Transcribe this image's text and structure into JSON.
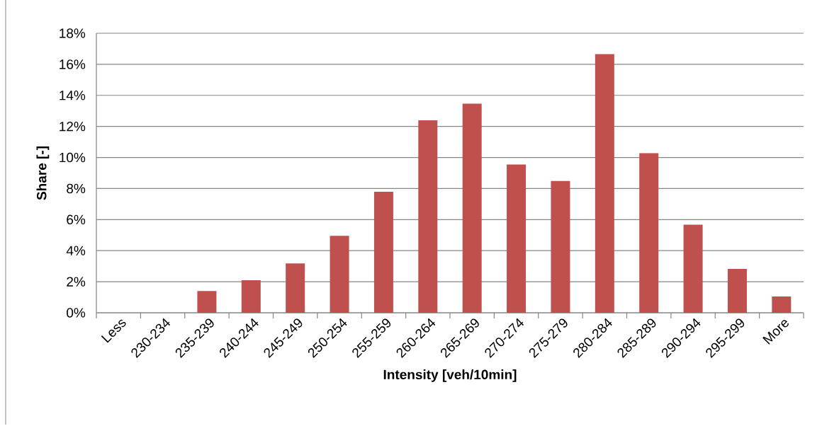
{
  "chart_data": {
    "type": "bar",
    "xlabel": "Intensity [veh/10min]",
    "ylabel": "Share [-]",
    "categories": [
      "Less",
      "230-234",
      "235-239",
      "240-244",
      "245-249",
      "250-254",
      "255-259",
      "260-264",
      "265-269",
      "270-274",
      "275-279",
      "280-284",
      "285-289",
      "290-294",
      "295-299",
      "More"
    ],
    "values": [
      0,
      0,
      1.4,
      2.1,
      3.18,
      4.95,
      7.79,
      12.39,
      13.47,
      9.55,
      8.49,
      16.66,
      10.27,
      5.67,
      2.82,
      1.05
    ],
    "color": "#c0504d",
    "ylim": [
      0,
      18
    ],
    "yticks": [
      {
        "value": 0,
        "label": "0%"
      },
      {
        "value": 2,
        "label": "2%"
      },
      {
        "value": 4,
        "label": "4%"
      },
      {
        "value": 6,
        "label": "6%"
      },
      {
        "value": 8,
        "label": "8%"
      },
      {
        "value": 10,
        "label": "10%"
      },
      {
        "value": 12,
        "label": "12%"
      },
      {
        "value": 14,
        "label": "14%"
      },
      {
        "value": 16,
        "label": "16%"
      },
      {
        "value": 18,
        "label": "18%"
      }
    ],
    "grid": "y"
  }
}
